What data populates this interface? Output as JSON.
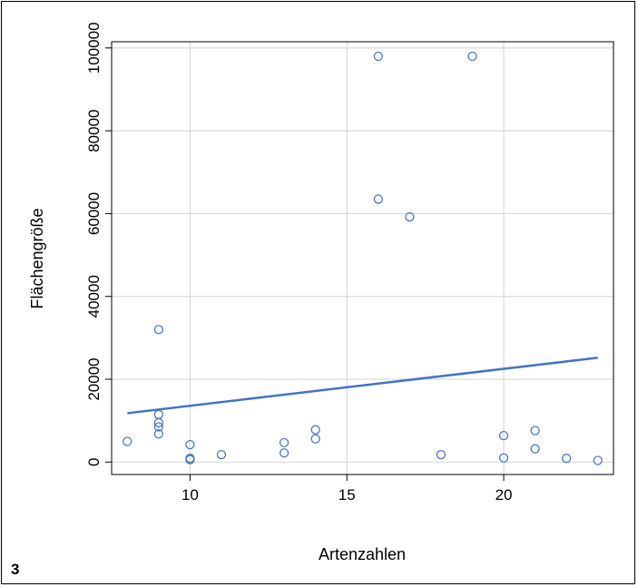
{
  "panel_label": "3",
  "chart_data": {
    "type": "scatter",
    "title": "",
    "xlabel": "Artenzahlen",
    "ylabel": "Flächengröße",
    "xlim": [
      7.5,
      23.5
    ],
    "ylim": [
      -3000,
      101500
    ],
    "x_ticks": [
      10,
      15,
      20
    ],
    "y_ticks": [
      0,
      20000,
      40000,
      60000,
      80000,
      100000
    ],
    "x_tick_labels": [
      "10",
      "15",
      "20"
    ],
    "y_tick_labels": [
      "0",
      "20000",
      "40000",
      "60000",
      "80000",
      "100000"
    ],
    "grid": true,
    "legend": "none",
    "colors": {
      "points": "#4a78c2",
      "trend_line": "#4472c4",
      "grid": "#d9d9d9",
      "axis": "#000000"
    },
    "points": [
      {
        "x": 8,
        "y": 5000
      },
      {
        "x": 9,
        "y": 32000
      },
      {
        "x": 9,
        "y": 11500
      },
      {
        "x": 9,
        "y": 9500
      },
      {
        "x": 9,
        "y": 8500
      },
      {
        "x": 9,
        "y": 6800
      },
      {
        "x": 10,
        "y": 4200
      },
      {
        "x": 10,
        "y": 900
      },
      {
        "x": 10,
        "y": 600
      },
      {
        "x": 11,
        "y": 1800
      },
      {
        "x": 13,
        "y": 4700
      },
      {
        "x": 13,
        "y": 2200
      },
      {
        "x": 14,
        "y": 7800
      },
      {
        "x": 14,
        "y": 5600
      },
      {
        "x": 16,
        "y": 98000
      },
      {
        "x": 16,
        "y": 63500
      },
      {
        "x": 17,
        "y": 59200
      },
      {
        "x": 18,
        "y": 1800
      },
      {
        "x": 19,
        "y": 98000
      },
      {
        "x": 20,
        "y": 6400
      },
      {
        "x": 20,
        "y": 1000
      },
      {
        "x": 21,
        "y": 7600
      },
      {
        "x": 21,
        "y": 3200
      },
      {
        "x": 22,
        "y": 900
      },
      {
        "x": 23,
        "y": 400
      }
    ],
    "trend_line": {
      "x": [
        8,
        23
      ],
      "y": [
        11800,
        25200
      ]
    }
  }
}
